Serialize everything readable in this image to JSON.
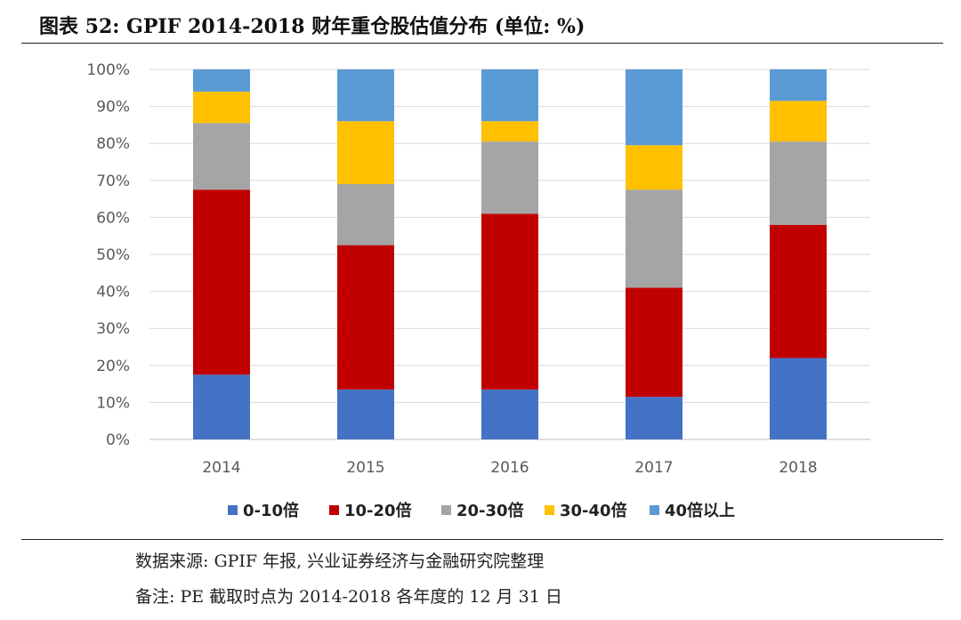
{
  "header": {
    "title": "图表 52: GPIF 2014-2018 财年重仓股估值分布 (单位: %)"
  },
  "footer": {
    "source": "数据来源: GPIF 年报, 兴业证券经济与金融研究院整理",
    "remark": "备注: PE 截取时点为 2014-2018 各年度的 12 月 31 日"
  },
  "chart_data": {
    "type": "bar",
    "stacked": true,
    "categories": [
      "2014",
      "2015",
      "2016",
      "2017",
      "2018"
    ],
    "y_ticks": [
      "0%",
      "10%",
      "20%",
      "30%",
      "40%",
      "50%",
      "60%",
      "70%",
      "80%",
      "90%",
      "100%"
    ],
    "ylim": [
      0,
      100
    ],
    "grid": true,
    "legend_position": "bottom",
    "series": [
      {
        "name": "0-10倍",
        "color": "#4472C4",
        "values": [
          17.5,
          13.5,
          13.5,
          11.5,
          22.0
        ]
      },
      {
        "name": "10-20倍",
        "color": "#C00000",
        "values": [
          50.0,
          39.0,
          47.5,
          29.5,
          36.0
        ]
      },
      {
        "name": "20-30倍",
        "color": "#A5A5A5",
        "values": [
          18.0,
          16.5,
          19.5,
          26.5,
          22.5
        ]
      },
      {
        "name": "30-40倍",
        "color": "#FFC000",
        "values": [
          8.5,
          17.0,
          5.5,
          12.0,
          11.0
        ]
      },
      {
        "name": "40倍以上",
        "color": "#5B9BD5",
        "values": [
          6.0,
          14.0,
          14.0,
          20.5,
          8.5
        ]
      }
    ]
  }
}
